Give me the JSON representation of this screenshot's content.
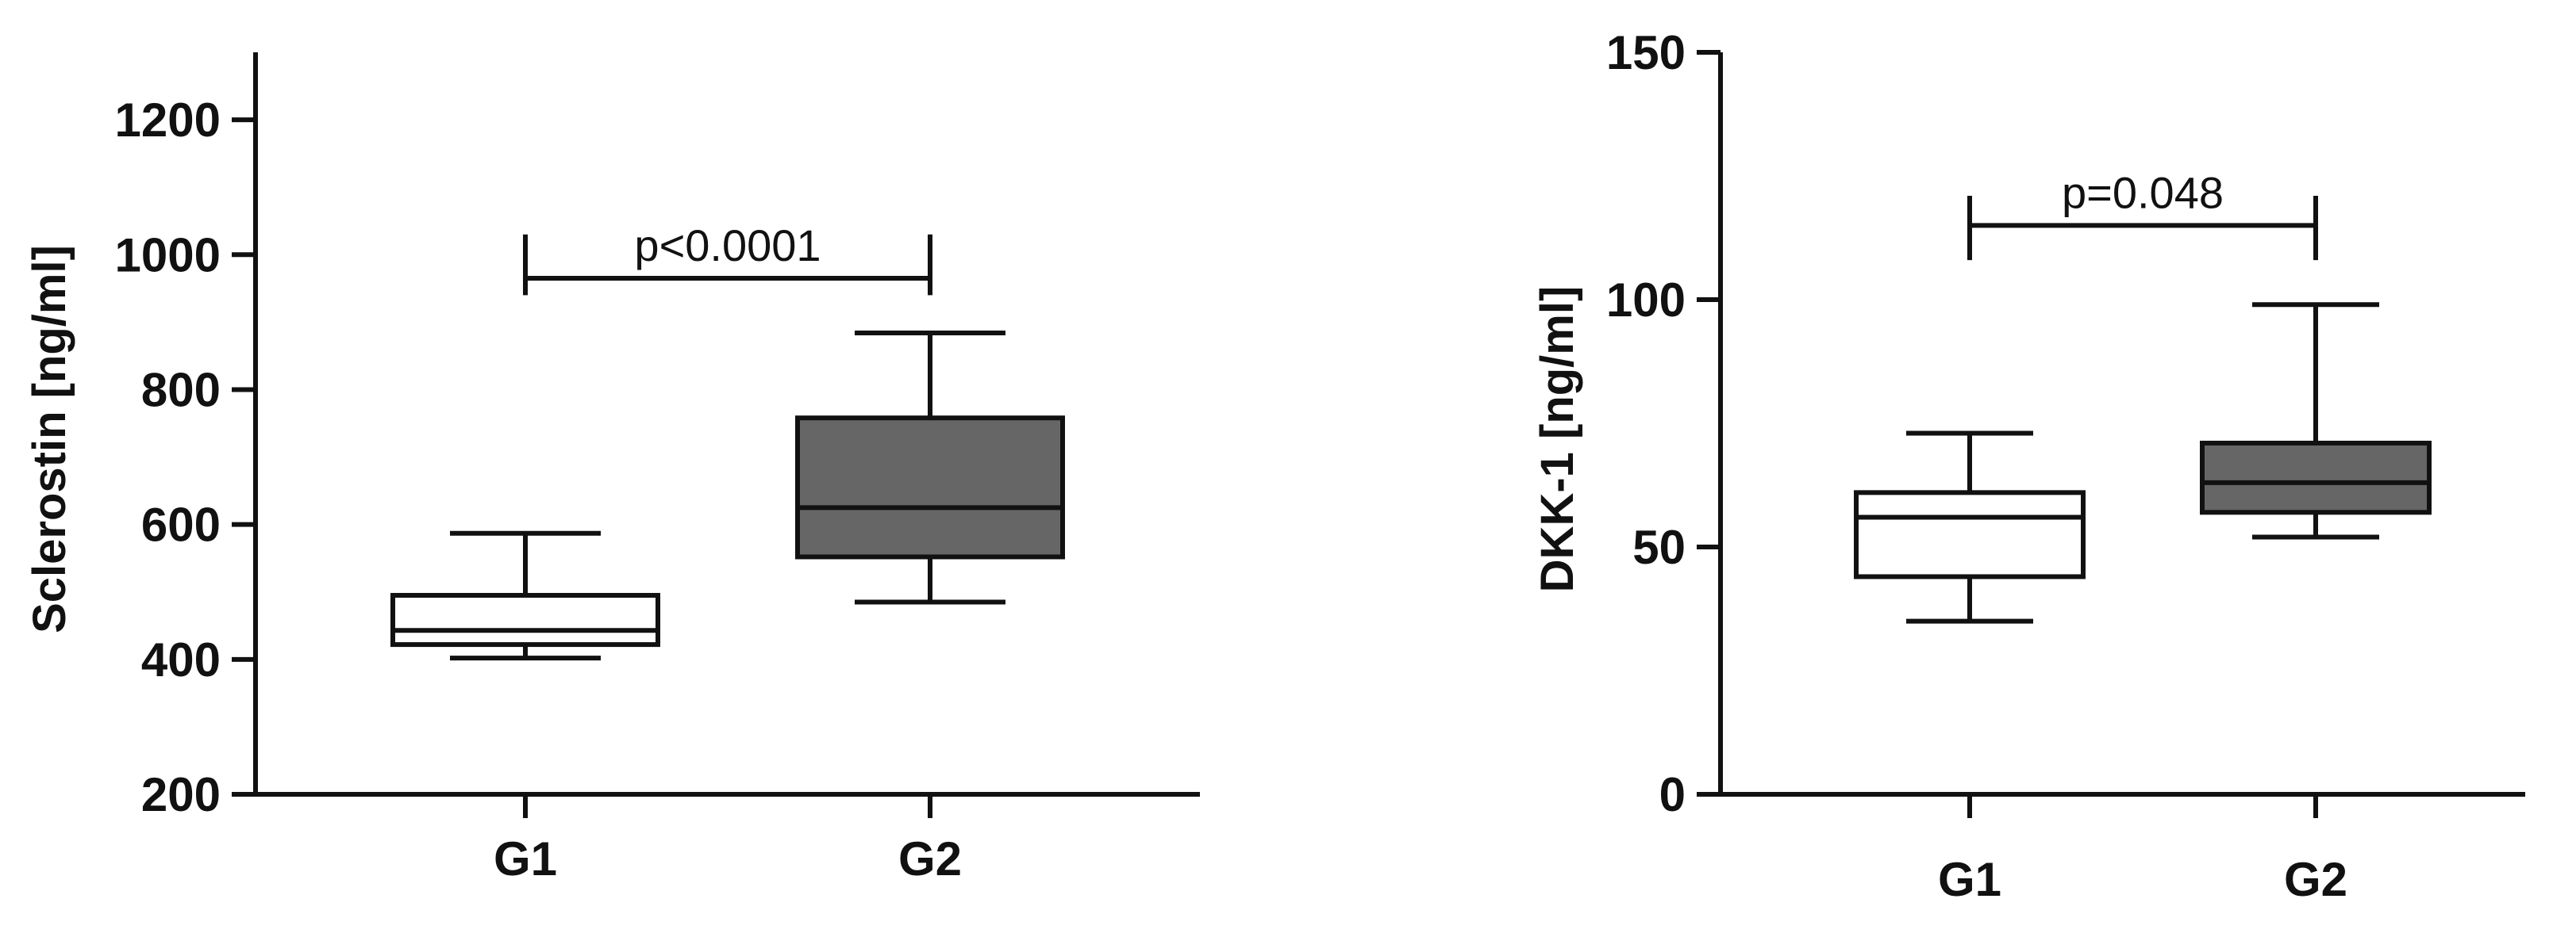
{
  "chart_data": [
    {
      "type": "box",
      "ylabel": "Sclerostin [ng/ml]",
      "ylim": [
        200,
        1300
      ],
      "yticks": [
        200,
        400,
        600,
        800,
        1000,
        1200
      ],
      "categories": [
        "G1",
        "G2"
      ],
      "boxes": [
        {
          "category": "G1",
          "whisker_low": 402,
          "q1": 422,
          "median": 443,
          "q3": 495,
          "whisker_high": 587,
          "fill": "#ffffff"
        },
        {
          "category": "G2",
          "whisker_low": 485,
          "q1": 552,
          "median": 625,
          "q3": 758,
          "whisker_high": 884,
          "fill": "#666666"
        }
      ],
      "annotation": {
        "text": "p<0.0001",
        "from": "G1",
        "to": "G2",
        "y": 965,
        "tick_low": 940,
        "tick_high": 1030
      }
    },
    {
      "type": "box",
      "ylabel": "DKK-1 [ng/ml]",
      "ylim": [
        0,
        150
      ],
      "yticks": [
        0,
        50,
        100,
        150
      ],
      "categories": [
        "G1",
        "G2"
      ],
      "boxes": [
        {
          "category": "G1",
          "whisker_low": 35,
          "q1": 44,
          "median": 56,
          "q3": 61,
          "whisker_high": 73,
          "fill": "#ffffff"
        },
        {
          "category": "G2",
          "whisker_low": 52,
          "q1": 57,
          "median": 63,
          "q3": 71,
          "whisker_high": 99,
          "fill": "#666666"
        }
      ],
      "annotation": {
        "text": "p=0.048",
        "from": "G1",
        "to": "G2",
        "y": 115,
        "tick_low": 108,
        "tick_high": 121
      }
    }
  ]
}
